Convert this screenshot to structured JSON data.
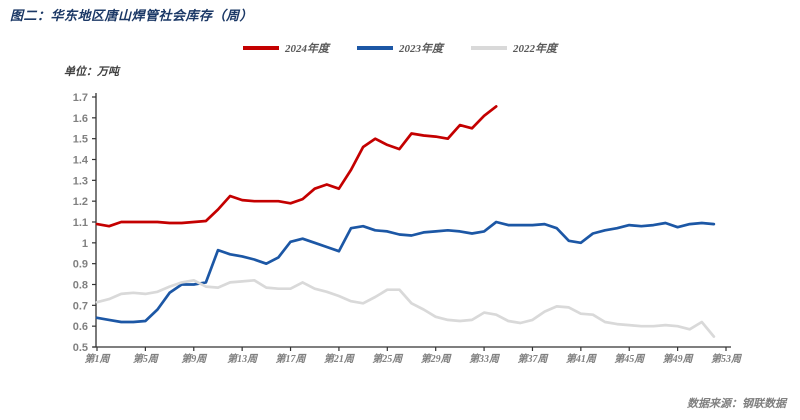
{
  "title": "图二：华东地区唐山焊管社会库存（周）",
  "unit_label": "单位：万吨",
  "source_label": "数据来源：钢联数据",
  "colors": {
    "title_text": "#1B3866",
    "red_series": "#C40000",
    "blue_series": "#1C57A5",
    "gray_series": "#D9D9D9",
    "legend_text": "#595959",
    "unit_text": "#404040",
    "axis_line": "#333333",
    "tick_text": "#808080",
    "source_text": "#808080",
    "background": "#FFFFFF"
  },
  "legend": {
    "items": [
      {
        "label": "2024年度",
        "color": "#C40000"
      },
      {
        "label": "2023年度",
        "color": "#1C57A5"
      },
      {
        "label": "2022年度",
        "color": "#D9D9D9"
      }
    ]
  },
  "chart_data": {
    "type": "line",
    "title": "图二：华东地区唐山焊管社会库存（周）",
    "ylabel": "万吨",
    "ylim": [
      0.5,
      1.7
    ],
    "grid": false,
    "legend_position": "top-center",
    "x_range_weeks": [
      1,
      53
    ],
    "x_tick_weeks": [
      1,
      5,
      9,
      13,
      17,
      21,
      25,
      29,
      33,
      37,
      41,
      45,
      49,
      53
    ],
    "x_tick_labels": [
      "第1周",
      "第5周",
      "第9周",
      "第13周",
      "第17周",
      "第21周",
      "第25周",
      "第29周",
      "第33周",
      "第37周",
      "第41周",
      "第45周",
      "第49周",
      "第53周"
    ],
    "y_tick_labels": [
      "1.7",
      "1.6",
      "1.5",
      "1.4",
      "1.3",
      "1.2",
      "1.1",
      "1",
      "0.9",
      "0.8",
      "0.7",
      "0.6",
      "0.5"
    ],
    "series": [
      {
        "name": "2024年度",
        "color": "#C40000",
        "start_week": 1,
        "values": [
          1.09,
          1.08,
          1.1,
          1.1,
          1.1,
          1.1,
          1.095,
          1.095,
          1.1,
          1.105,
          1.16,
          1.225,
          1.205,
          1.2,
          1.2,
          1.2,
          1.19,
          1.21,
          1.26,
          1.28,
          1.26,
          1.35,
          1.46,
          1.5,
          1.47,
          1.45,
          1.525,
          1.515,
          1.51,
          1.5,
          1.565,
          1.55,
          1.61,
          1.655
        ]
      },
      {
        "name": "2023年度",
        "color": "#1C57A5",
        "start_week": 1,
        "values": [
          0.64,
          0.63,
          0.62,
          0.62,
          0.625,
          0.68,
          0.76,
          0.8,
          0.8,
          0.81,
          0.965,
          0.945,
          0.935,
          0.92,
          0.9,
          0.93,
          1.005,
          1.02,
          1.0,
          0.98,
          0.96,
          1.07,
          1.08,
          1.06,
          1.055,
          1.04,
          1.035,
          1.05,
          1.055,
          1.06,
          1.055,
          1.045,
          1.055,
          1.1,
          1.085,
          1.085,
          1.085,
          1.09,
          1.07,
          1.01,
          1.0,
          1.045,
          1.06,
          1.07,
          1.085,
          1.08,
          1.085,
          1.095,
          1.075,
          1.09,
          1.095,
          1.09
        ]
      },
      {
        "name": "2022年度",
        "color": "#D9D9D9",
        "start_week": 1,
        "values": [
          0.715,
          0.73,
          0.755,
          0.76,
          0.755,
          0.765,
          0.79,
          0.81,
          0.82,
          0.79,
          0.785,
          0.81,
          0.815,
          0.82,
          0.785,
          0.78,
          0.78,
          0.81,
          0.78,
          0.765,
          0.745,
          0.72,
          0.71,
          0.74,
          0.775,
          0.775,
          0.71,
          0.68,
          0.645,
          0.63,
          0.625,
          0.63,
          0.665,
          0.655,
          0.625,
          0.615,
          0.63,
          0.67,
          0.695,
          0.69,
          0.66,
          0.655,
          0.62,
          0.61,
          0.605,
          0.6,
          0.6,
          0.605,
          0.6,
          0.585,
          0.62,
          0.55
        ]
      }
    ]
  }
}
